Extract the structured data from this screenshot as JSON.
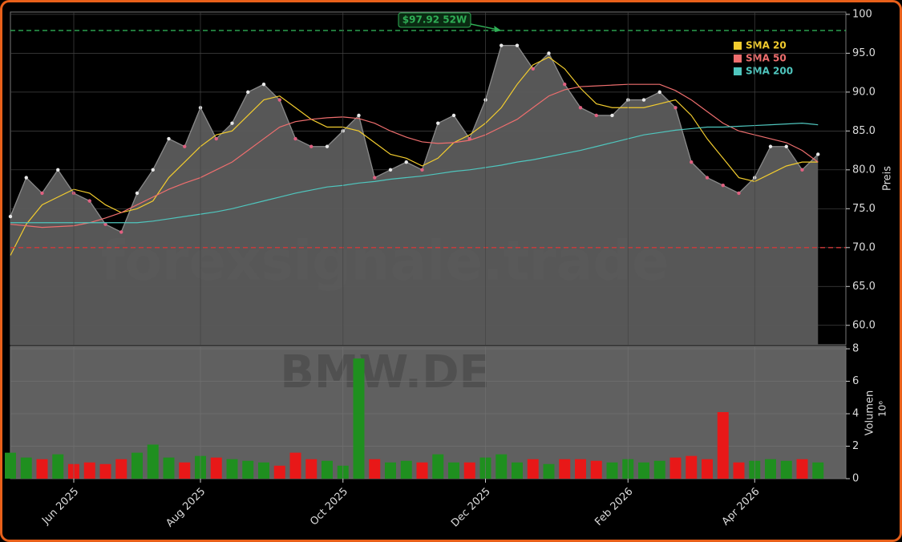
{
  "chart_data": [
    {
      "type": "line",
      "y_label": "Preis",
      "watermark": "forexsignale.trade",
      "categories": [
        null,
        null,
        null,
        null,
        "Jun 2025",
        null,
        null,
        null,
        null,
        null,
        null,
        null,
        "Aug 2025",
        null,
        null,
        null,
        null,
        null,
        null,
        null,
        null,
        "Oct 2025",
        null,
        null,
        null,
        null,
        null,
        null,
        null,
        null,
        "Dec 2025",
        null,
        null,
        null,
        null,
        null,
        null,
        null,
        null,
        "Feb 2026",
        null,
        null,
        null,
        null,
        null,
        null,
        null,
        "Apr 2026",
        null,
        null,
        null,
        null
      ],
      "values": [
        74,
        79,
        77,
        80,
        77,
        76,
        73,
        72,
        77,
        80,
        84,
        83,
        88,
        84,
        86,
        90,
        91,
        89,
        84,
        83,
        83,
        85,
        87,
        79,
        80,
        81,
        80,
        86,
        87,
        84,
        89,
        96,
        96,
        93,
        95,
        91,
        88,
        87,
        87,
        89,
        89,
        90,
        88,
        81,
        79,
        78,
        77,
        79,
        83,
        83,
        80,
        82
      ],
      "area_color": "#5c5c5c",
      "line_color": "#8a8a8a",
      "series": [
        {
          "name": "SMA 20",
          "color": "#f2cc2e",
          "values": [
            69,
            73,
            75.5,
            76.5,
            77.5,
            77,
            75.5,
            74.5,
            75,
            76,
            79,
            81,
            83,
            84.5,
            85,
            87,
            89,
            89.5,
            88,
            86.5,
            85.5,
            85.5,
            85,
            83.5,
            82,
            81.5,
            80.5,
            81.5,
            83.5,
            84.5,
            86,
            88,
            91,
            93.5,
            94.5,
            93,
            90.5,
            88.5,
            88,
            88,
            88,
            88.5,
            89,
            87,
            84,
            81.5,
            79,
            78.5,
            79.5,
            80.5,
            81,
            81
          ]
        },
        {
          "name": "SMA 50",
          "color": "#ee6e6e",
          "values": [
            73,
            72.8,
            72.6,
            72.7,
            72.8,
            73.2,
            73.8,
            74.5,
            75.5,
            76.5,
            77.5,
            78.3,
            79,
            80,
            81,
            82.5,
            84,
            85.5,
            86.2,
            86.5,
            86.7,
            86.8,
            86.6,
            86,
            85,
            84.2,
            83.6,
            83.4,
            83.5,
            83.8,
            84.5,
            85.5,
            86.5,
            88,
            89.5,
            90.3,
            90.7,
            90.8,
            90.9,
            91,
            91,
            91,
            90.2,
            89,
            87.5,
            86,
            85,
            84.5,
            84,
            83.5,
            82.5,
            81
          ]
        },
        {
          "name": "SMA 200",
          "color": "#4fc6be",
          "values": [
            73.2,
            73.2,
            73.2,
            73.2,
            73.2,
            73.2,
            73.2,
            73.2,
            73.2,
            73.4,
            73.7,
            74,
            74.3,
            74.6,
            75,
            75.5,
            76,
            76.5,
            77,
            77.4,
            77.8,
            78,
            78.3,
            78.5,
            78.8,
            79,
            79.2,
            79.5,
            79.8,
            80,
            80.3,
            80.6,
            81,
            81.3,
            81.7,
            82.1,
            82.5,
            83,
            83.5,
            84,
            84.5,
            84.8,
            85.1,
            85.3,
            85.5,
            85.5,
            85.6,
            85.7,
            85.8,
            85.9,
            86,
            85.8
          ]
        }
      ],
      "hlines": [
        {
          "value": 97.92,
          "color": "#2fae55"
        },
        {
          "value": 70,
          "color": "#d23a3a"
        }
      ],
      "annotations": [
        {
          "text": "$97.92 52W",
          "color": "#2fae55",
          "index": 31
        }
      ],
      "ylim": [
        57.5,
        100.3
      ],
      "yticks": [
        {
          "value": 60,
          "label": "60.0"
        },
        {
          "value": 65,
          "label": "65.0"
        },
        {
          "value": 70,
          "label": "70.0"
        },
        {
          "value": 75,
          "label": "75.0"
        },
        {
          "value": 80,
          "label": "80.0"
        },
        {
          "value": 85,
          "label": "85.0"
        },
        {
          "value": 90,
          "label": "90.0"
        },
        {
          "value": 95,
          "label": "95.0"
        },
        100
      ],
      "grid": true,
      "legend": "upper-right"
    },
    {
      "type": "bar",
      "y_label": "Volumen",
      "scale_label": "10⁶",
      "watermark": "BMW.DE",
      "values": [
        1.6,
        1.3,
        1.2,
        1.5,
        0.9,
        1.0,
        0.9,
        1.2,
        1.6,
        2.1,
        1.3,
        1.0,
        1.4,
        1.3,
        1.2,
        1.1,
        1.0,
        0.8,
        1.6,
        1.2,
        1.1,
        0.8,
        7.4,
        1.2,
        1.0,
        1.1,
        1.0,
        1.5,
        1.0,
        1.0,
        1.3,
        1.5,
        1.0,
        1.2,
        0.9,
        1.2,
        1.2,
        1.1,
        1.0,
        1.2,
        1.0,
        1.1,
        1.3,
        1.4,
        1.2,
        4.1,
        1.0,
        1.1,
        1.2,
        1.1,
        1.2,
        1.0
      ],
      "up_color": "#1f8f1f",
      "down_color": "#e81818",
      "ylim": [
        0,
        8.15
      ],
      "yticks": [
        0,
        2,
        4,
        6,
        8
      ],
      "grid": true
    }
  ]
}
